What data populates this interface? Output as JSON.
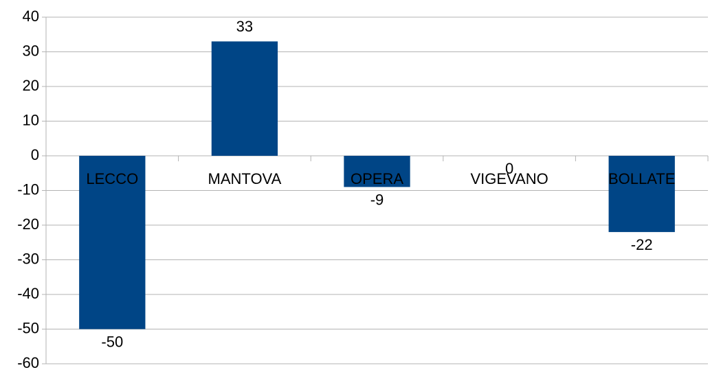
{
  "chart_data": {
    "type": "bar",
    "categories": [
      "LECCO",
      "MANTOVA",
      "OPERA",
      "VIGEVANO",
      "BOLLATE"
    ],
    "values": [
      -50,
      33,
      -9,
      0,
      -22
    ],
    "color": "#004586",
    "ylim": [
      -60,
      40
    ],
    "yticks": [
      -60,
      -50,
      -40,
      -30,
      -20,
      -10,
      0,
      10,
      20,
      30,
      40
    ],
    "grid": true
  }
}
